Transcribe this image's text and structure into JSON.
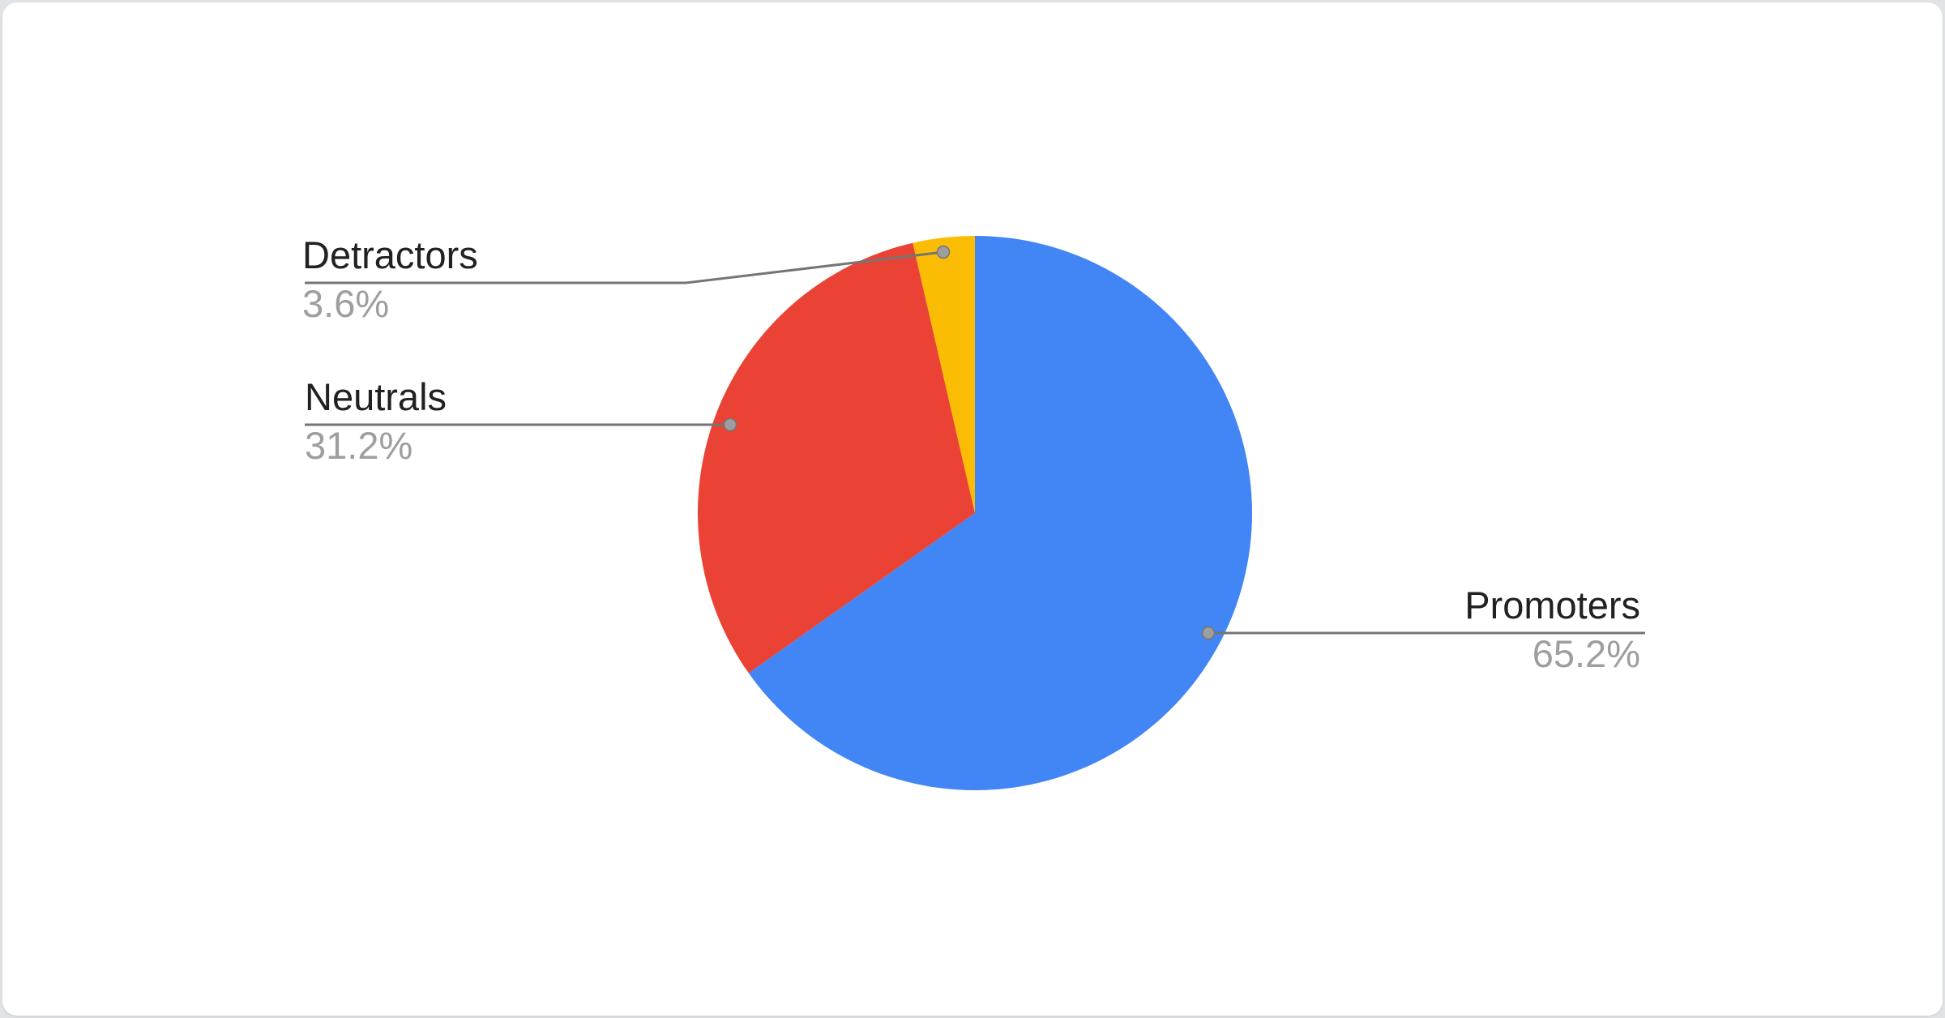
{
  "page": {
    "background_color": "#e1e4e6",
    "card_color": "#ffffff"
  },
  "chart_data": {
    "type": "pie",
    "title": "",
    "start_angle_deg": 0,
    "direction": "clockwise",
    "legend_position": "outside-callouts",
    "label_color": "#212121",
    "percent_color": "#9e9e9e",
    "callout_line_color": "#757575",
    "callout_dot_color": "#9e9e9e",
    "categories": [
      "Promoters",
      "Neutrals",
      "Detractors"
    ],
    "values": [
      65.2,
      31.2,
      3.6
    ],
    "slices": [
      {
        "label": "Promoters",
        "value": 65.2,
        "display": "65.2%",
        "color": "#4285f4"
      },
      {
        "label": "Neutrals",
        "value": 31.2,
        "display": "31.2%",
        "color": "#ea4335"
      },
      {
        "label": "Detractors",
        "value": 3.6,
        "display": "3.6%",
        "color": "#fbbc04"
      }
    ]
  }
}
